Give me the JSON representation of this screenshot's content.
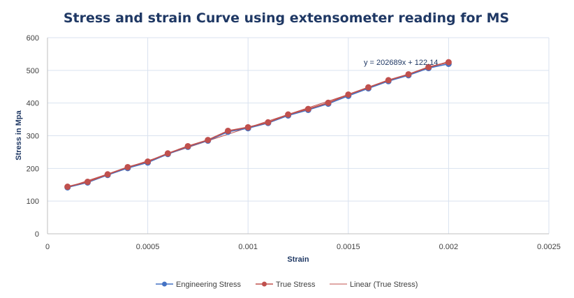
{
  "chart_data": {
    "type": "line",
    "title": "Stress and strain Curve using extensometer reading for MS",
    "xlabel": "Strain",
    "ylabel": "Stress in Mpa",
    "xlim": [
      0,
      0.0025
    ],
    "ylim": [
      0,
      600
    ],
    "x_ticks": [
      "0",
      "0.0005",
      "0.001",
      "0.0015",
      "0.002",
      "0.0025"
    ],
    "y_ticks": [
      "0",
      "100",
      "200",
      "300",
      "400",
      "500",
      "600"
    ],
    "grid": true,
    "legend_position": "bottom",
    "x": [
      0.0001,
      0.0002,
      0.0003,
      0.0004,
      0.0005,
      0.0006,
      0.0007,
      0.0008,
      0.0009,
      0.001,
      0.0011,
      0.0012,
      0.0013,
      0.0014,
      0.0015,
      0.0016,
      0.0017,
      0.0018,
      0.0019,
      0.002
    ],
    "series": [
      {
        "name": "Engineering Stress",
        "color": "#4472c4",
        "values": [
          142,
          157,
          180,
          201,
          218,
          244,
          266,
          285,
          312,
          323,
          339,
          362,
          379,
          398,
          422,
          445,
          467,
          485,
          507,
          520
        ]
      },
      {
        "name": "True Stress",
        "color": "#c0504d",
        "values": [
          144,
          159,
          182,
          204,
          221,
          246,
          268,
          287,
          315,
          326,
          341,
          365,
          382,
          401,
          426,
          448,
          470,
          488,
          510,
          525
        ]
      }
    ],
    "trendline": {
      "name": "Linear (True Stress)",
      "color": "#c0504d",
      "slope": 202689,
      "intercept": 122.14,
      "x_range": [
        0.0001,
        0.002
      ],
      "equation_label": "y = 202689x + 122.14"
    }
  }
}
